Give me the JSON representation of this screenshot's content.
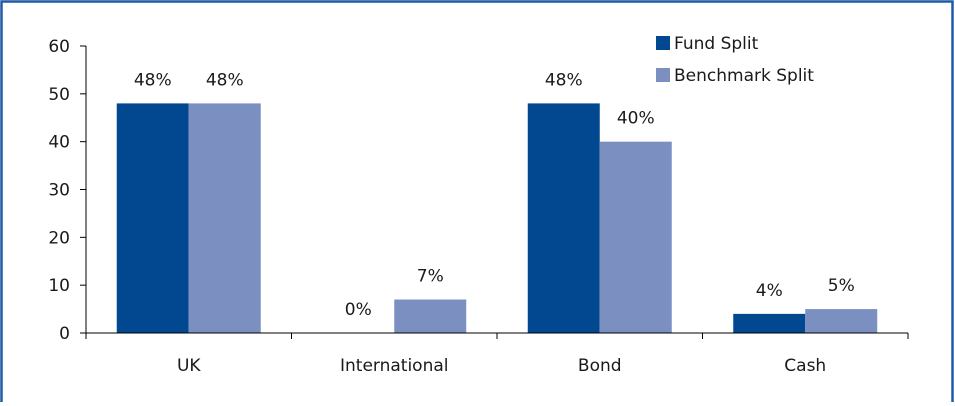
{
  "colors": {
    "frame": "#1f5aa6",
    "fund": "#024890",
    "benchmark": "#7b8fc1",
    "axis": "#000000"
  },
  "chart_data": {
    "type": "bar",
    "categories": [
      "UK",
      "International",
      "Bond",
      "Cash"
    ],
    "series": [
      {
        "name": "Fund Split",
        "values": [
          48,
          0,
          48,
          4
        ],
        "labels": [
          "48%",
          "0%",
          "48%",
          "4%"
        ]
      },
      {
        "name": "Benchmark Split",
        "values": [
          48,
          7,
          40,
          5
        ],
        "labels": [
          "48%",
          "7%",
          "40%",
          "5%"
        ]
      }
    ],
    "yticks": [
      "0",
      "10",
      "20",
      "30",
      "40",
      "50",
      "60"
    ],
    "ylim": [
      0,
      60
    ],
    "title": "",
    "xlabel": "",
    "ylabel": "",
    "legend_position": "top-right",
    "grid": false
  }
}
